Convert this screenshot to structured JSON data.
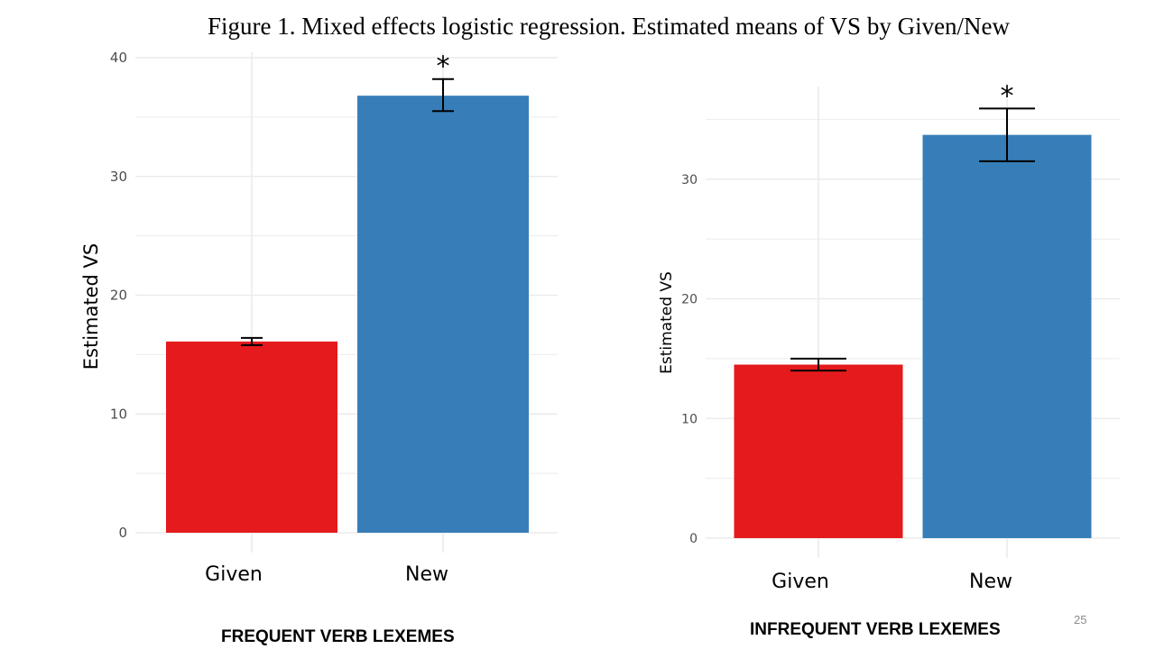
{
  "slide": {
    "title": "Figure 1. Mixed effects logistic regression. Estimated means of VS by Given/New",
    "page_number": "25"
  },
  "colors": {
    "given": "#e41a1c",
    "new": "#377eb8",
    "grid": "#ebebeb"
  },
  "chart_data": [
    {
      "type": "bar",
      "caption": "FREQUENT VERB LEXEMES",
      "ylabel": "Estimated VS",
      "xlabel": "",
      "categories": [
        "Given",
        "New"
      ],
      "values": [
        16.1,
        36.8
      ],
      "error_low": [
        15.8,
        35.5
      ],
      "error_high": [
        16.4,
        38.2
      ],
      "significance": [
        "",
        "*"
      ],
      "ylim": [
        0,
        40
      ],
      "yticks": [
        0,
        10,
        20,
        30,
        40
      ],
      "grid": true,
      "legend": "none"
    },
    {
      "type": "bar",
      "caption": "INFREQUENT VERB LEXEMES",
      "ylabel": "Estimated VS",
      "xlabel": "",
      "categories": [
        "Given",
        "New"
      ],
      "values": [
        14.5,
        33.7
      ],
      "error_low": [
        14.0,
        31.5
      ],
      "error_high": [
        15.0,
        35.9
      ],
      "significance": [
        "",
        "*"
      ],
      "ylim": [
        0,
        37.5
      ],
      "yticks": [
        0,
        10,
        20,
        30
      ],
      "grid": true,
      "legend": "none"
    }
  ]
}
